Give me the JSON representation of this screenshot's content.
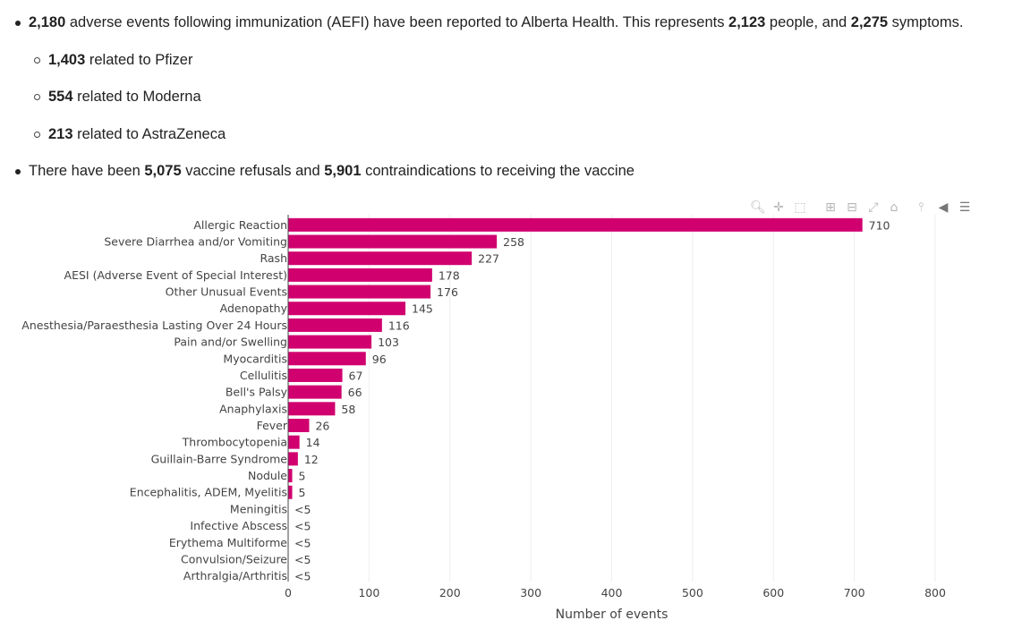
{
  "summary": {
    "line1": {
      "n1": "2,180",
      "t1": " adverse events following immunization (AEFI) have been reported to Alberta Health. This represents ",
      "n2": "2,123",
      "t2": " people, and ",
      "n3": "2,275",
      "t3": " symptoms."
    },
    "sub": [
      {
        "count": "1,403",
        "text": " related to Pfizer"
      },
      {
        "count": "554",
        "text": " related to Moderna"
      },
      {
        "count": "213",
        "text": " related to AstraZeneca"
      }
    ],
    "line2": {
      "t1": "There have been ",
      "n1": "5,075",
      "t2": " vaccine refusals and ",
      "n2": "5,901",
      "t3": " contraindications to receiving the vaccine"
    }
  },
  "modebar": [
    "zoom-icon",
    "pan-icon",
    "box-select-icon",
    "zoom-in-icon",
    "zoom-out-icon",
    "autoscale-icon",
    "reset-axes-icon",
    "spike-lines-icon",
    "hover-closest-icon",
    "hover-compare-icon"
  ],
  "chart_data": {
    "type": "bar",
    "orientation": "horizontal",
    "xlabel": "Number of events",
    "ylabel": "",
    "xlim": [
      0,
      800
    ],
    "xticks": [
      0,
      100,
      200,
      300,
      400,
      500,
      600,
      700,
      800
    ],
    "grid": true,
    "bar_color": "#d1006f",
    "categories": [
      "Allergic Reaction",
      "Severe Diarrhea and/or Vomiting",
      "Rash",
      "AESI (Adverse Event of Special Interest)",
      "Other Unusual Events",
      "Adenopathy",
      "Anesthesia/Paraesthesia Lasting Over 24 Hours",
      "Pain and/or Swelling",
      "Myocarditis",
      "Cellulitis",
      "Bell's Palsy",
      "Anaphylaxis",
      "Fever",
      "Thrombocytopenia",
      "Guillain-Barre Syndrome",
      "Nodule",
      "Encephalitis, ADEM, Myelitis",
      "Meningitis",
      "Infective Abscess",
      "Erythema Multiforme",
      "Convulsion/Seizure",
      "Arthralgia/Arthritis"
    ],
    "values": [
      710,
      258,
      227,
      178,
      176,
      145,
      116,
      103,
      96,
      67,
      66,
      58,
      26,
      14,
      12,
      5,
      5,
      null,
      null,
      null,
      null,
      null
    ],
    "value_labels": [
      "710",
      "258",
      "227",
      "178",
      "176",
      "145",
      "116",
      "103",
      "96",
      "67",
      "66",
      "58",
      "26",
      "14",
      "12",
      "5",
      "5",
      "<5",
      "<5",
      "<5",
      "<5",
      "<5"
    ]
  }
}
